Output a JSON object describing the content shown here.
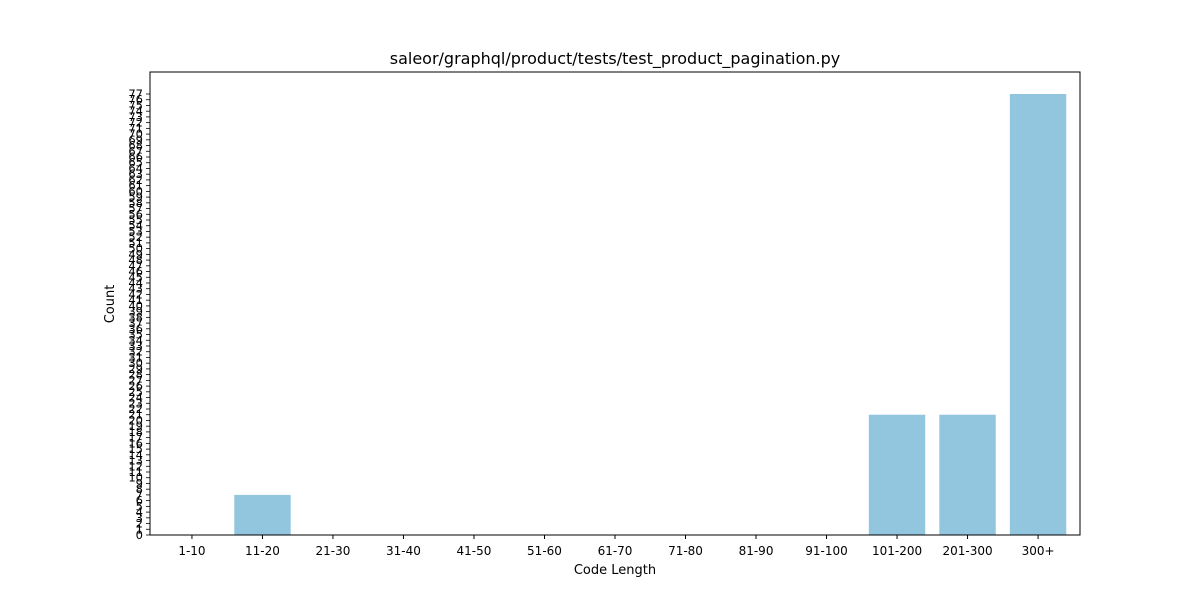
{
  "chart_data": {
    "type": "bar",
    "title": "saleor/graphql/product/tests/test_product_pagination.py",
    "xlabel": "Code Length",
    "ylabel": "Count",
    "categories": [
      "1-10",
      "11-20",
      "21-30",
      "31-40",
      "41-50",
      "51-60",
      "61-70",
      "71-80",
      "81-90",
      "91-100",
      "101-200",
      "201-300",
      "300+"
    ],
    "values": [
      0,
      7,
      0,
      0,
      0,
      0,
      0,
      0,
      0,
      0,
      21,
      21,
      77
    ],
    "ylim": [
      0,
      77
    ],
    "ytick_step": 1,
    "bar_color": "#92c5de",
    "grid": false,
    "legend": "none"
  }
}
